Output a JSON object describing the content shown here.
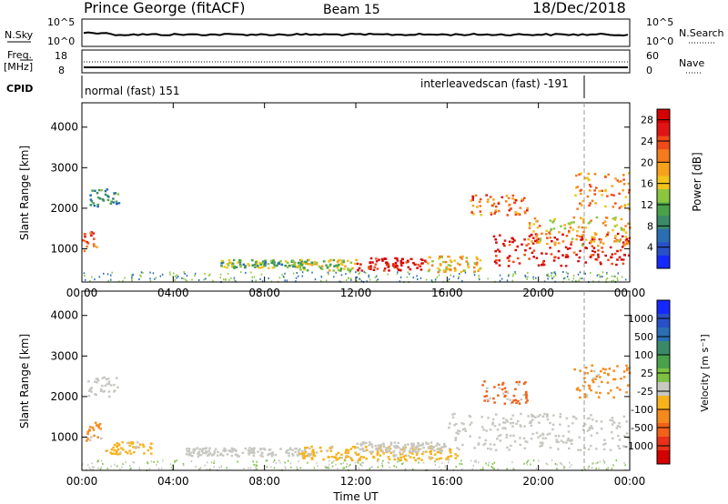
{
  "header": {
    "site": "Prince George (fitACF)",
    "beam": "Beam 15",
    "date": "18/Dec/2018"
  },
  "top_panels": {
    "nsky_label": "N.Sky",
    "nsky_ticks": [
      "10^5",
      "10^0"
    ],
    "nsearch_label": "N.Search",
    "nsearch_ticks": [
      "10^5",
      "10^0"
    ],
    "freq_label": "Freq.",
    "freq_unit": "[MHz]",
    "freq_ticks": [
      "18",
      "8"
    ],
    "nave_label": "Nave",
    "nave_ticks": [
      "60",
      "0"
    ],
    "cpid_label": "CPID",
    "cpid_modes": [
      {
        "label": "normal (fast) 151",
        "start_hour": 0,
        "end_hour": 22
      },
      {
        "label": "interleavedscan (fast) -191",
        "start_hour": 22,
        "end_hour": 24
      }
    ]
  },
  "colors": {
    "power_scale": [
      "#1428ff",
      "#2850c8",
      "#2a6fb4",
      "#3a8a6a",
      "#49a24a",
      "#8cc63f",
      "#f2c318",
      "#f7a21b",
      "#f57b1c",
      "#f04a1a",
      "#e01414",
      "#d40000"
    ],
    "velocity_scale": [
      "#1428ff",
      "#2850c8",
      "#2a6fb4",
      "#3a8a6a",
      "#49a24a",
      "#7dc242",
      "#c8c8c2",
      "#f7b21b",
      "#f58a1c",
      "#f2601a",
      "#e8301a",
      "#d40000"
    ]
  },
  "chart_data": [
    {
      "type": "heatmap",
      "name": "power",
      "ylabel": "Slant Range [km]",
      "xlabel": "",
      "x_ticks": [
        "00:00",
        "04:00",
        "08:00",
        "12:00",
        "16:00",
        "20:00",
        "00:00"
      ],
      "y_ticks": [
        "1000",
        "2000",
        "3000",
        "4000"
      ],
      "ylim": [
        180,
        4600
      ],
      "xlim_hours": [
        0,
        24
      ],
      "colorbar_label": "Power [dB]",
      "colorbar_ticks": [
        "4",
        "8",
        "12",
        "16",
        "20",
        "24",
        "28"
      ],
      "colorbar_range": [
        0,
        30
      ],
      "blobs": [
        {
          "t0": 0.0,
          "t1": 0.7,
          "r0": 900,
          "r1": 1450,
          "v": 24
        },
        {
          "t0": 0.3,
          "t1": 1.6,
          "r0": 2050,
          "r1": 2500,
          "v": 8
        },
        {
          "t0": 6.0,
          "t1": 10.0,
          "r0": 550,
          "r1": 750,
          "v": 12
        },
        {
          "t0": 9.5,
          "t1": 12.0,
          "r0": 480,
          "r1": 760,
          "v": 14
        },
        {
          "t0": 12.0,
          "t1": 15.0,
          "r0": 480,
          "r1": 800,
          "v": 28
        },
        {
          "t0": 15.0,
          "t1": 17.5,
          "r0": 450,
          "r1": 850,
          "v": 18
        },
        {
          "t0": 17.0,
          "t1": 19.5,
          "r0": 1850,
          "r1": 2350,
          "v": 22
        },
        {
          "t0": 18.0,
          "t1": 24.0,
          "r0": 600,
          "r1": 1400,
          "v": 27
        },
        {
          "t0": 19.5,
          "t1": 24.0,
          "r0": 1100,
          "r1": 1800,
          "v": 18
        },
        {
          "t0": 21.5,
          "t1": 24.0,
          "r0": 2000,
          "r1": 2900,
          "v": 20
        }
      ]
    },
    {
      "type": "heatmap",
      "name": "velocity",
      "ylabel": "Slant Range [km]",
      "xlabel": "Time UT",
      "x_ticks": [
        "00:00",
        "04:00",
        "08:00",
        "12:00",
        "16:00",
        "20:00",
        "00:00"
      ],
      "y_ticks": [
        "1000",
        "2000",
        "3000",
        "4000"
      ],
      "ylim": [
        180,
        4600
      ],
      "xlim_hours": [
        0,
        24
      ],
      "colorbar_label": "Velocity [m s⁻¹]",
      "colorbar_ticks": [
        "1000",
        "500",
        "100",
        "25",
        "-25",
        "-100",
        "-500",
        "-1000"
      ],
      "blobs": [
        {
          "t0": 0.0,
          "t1": 0.8,
          "r0": 900,
          "r1": 1400,
          "v": "#f58a1c"
        },
        {
          "t0": 0.2,
          "t1": 1.6,
          "r0": 2000,
          "r1": 2500,
          "v": "#c8c8c2"
        },
        {
          "t0": 1.0,
          "t1": 3.0,
          "r0": 600,
          "r1": 900,
          "v": "#f7b21b"
        },
        {
          "t0": 4.5,
          "t1": 10.0,
          "r0": 550,
          "r1": 760,
          "v": "#c8c8c2"
        },
        {
          "t0": 9.5,
          "t1": 16.5,
          "r0": 450,
          "r1": 800,
          "v": "#f7b21b"
        },
        {
          "t0": 12.0,
          "t1": 16.0,
          "r0": 650,
          "r1": 900,
          "v": "#c8c8c2"
        },
        {
          "t0": 16.0,
          "t1": 24.0,
          "r0": 700,
          "r1": 1600,
          "v": "#c8c8c2"
        },
        {
          "t0": 17.5,
          "t1": 19.5,
          "r0": 1850,
          "r1": 2400,
          "v": "#f2601a"
        },
        {
          "t0": 21.5,
          "t1": 24.0,
          "r0": 2000,
          "r1": 2800,
          "v": "#f58a1c"
        }
      ]
    }
  ]
}
